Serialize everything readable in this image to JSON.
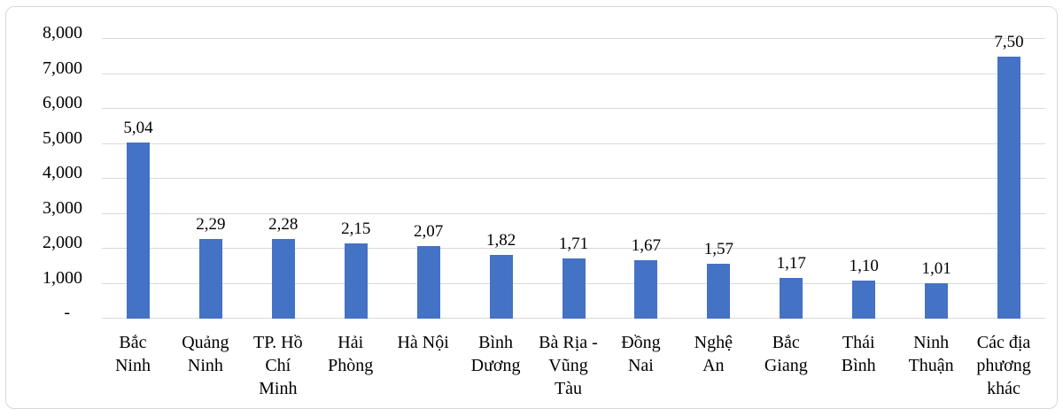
{
  "chart_data": {
    "type": "bar",
    "title": "",
    "categories": [
      "Bắc Ninh",
      "Quảng Ninh",
      "TP. Hồ Chí Minh",
      "Hải Phòng",
      "Hà Nội",
      "Bình Dương",
      "Bà Rịa - Vũng Tàu",
      "Đồng Nai",
      "Nghệ An",
      "Bắc Giang",
      "Thái Bình",
      "Ninh Thuận",
      "Các địa phương khác"
    ],
    "category_lines": [
      [
        "Bắc",
        "Ninh"
      ],
      [
        "Quảng",
        "Ninh"
      ],
      [
        "TP. Hồ",
        "Chí",
        "Minh"
      ],
      [
        "Hải",
        "Phòng"
      ],
      [
        "Hà Nội"
      ],
      [
        "Bình",
        "Dương"
      ],
      [
        "Bà Rịa -",
        "Vũng",
        "Tàu"
      ],
      [
        "Đồng",
        "Nai"
      ],
      [
        "Nghệ",
        "An"
      ],
      [
        "Bắc",
        "Giang"
      ],
      [
        "Thái",
        "Bình"
      ],
      [
        "Ninh",
        "Thuận"
      ],
      [
        "Các địa",
        "phương",
        "khác"
      ]
    ],
    "values": [
      5040,
      2290,
      2280,
      2150,
      2070,
      1820,
      1710,
      1670,
      1570,
      1170,
      1100,
      1010,
      7500
    ],
    "data_labels": [
      "5,04",
      "2,29",
      "2,28",
      "2,15",
      "2,07",
      "1,82",
      "1,71",
      "1,67",
      "1,57",
      "1,17",
      "1,10",
      "1,01",
      "7,50"
    ],
    "xlabel": "",
    "ylabel": "",
    "ylim": [
      0,
      8000
    ],
    "y_ticks": [
      {
        "value": 8000,
        "label": "8,000"
      },
      {
        "value": 7000,
        "label": "7,000"
      },
      {
        "value": 6000,
        "label": "6,000"
      },
      {
        "value": 5000,
        "label": "5,000"
      },
      {
        "value": 4000,
        "label": "4,000"
      },
      {
        "value": 3000,
        "label": "3,000"
      },
      {
        "value": 2000,
        "label": "2,000"
      },
      {
        "value": 1000,
        "label": "1,000"
      },
      {
        "value": 0,
        "label": "-"
      }
    ],
    "grid": true,
    "legend": "none",
    "colors": {
      "bar": "#4472c4",
      "gridline": "#d9d9d9",
      "frame_border": "#d8d8d8",
      "text": "#000000",
      "background": "#ffffff"
    }
  }
}
